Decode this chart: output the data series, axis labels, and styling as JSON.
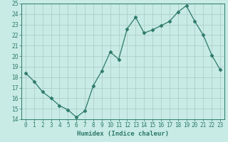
{
  "x": [
    0,
    1,
    2,
    3,
    4,
    5,
    6,
    7,
    8,
    9,
    10,
    11,
    12,
    13,
    14,
    15,
    16,
    17,
    18,
    19,
    20,
    21,
    22,
    23
  ],
  "y": [
    18.4,
    17.6,
    16.6,
    16.0,
    15.3,
    14.9,
    14.2,
    14.8,
    17.2,
    18.6,
    20.4,
    19.7,
    22.6,
    23.7,
    22.2,
    22.5,
    22.9,
    23.3,
    24.2,
    24.8,
    23.3,
    22.0,
    20.1,
    18.7
  ],
  "line_color": "#2d7a68",
  "marker": "D",
  "marker_size": 2.5,
  "bg_color": "#c8ebe5",
  "grid_color": "#b0cfc9",
  "xlabel": "Humidex (Indice chaleur)",
  "ylim": [
    14,
    25
  ],
  "xlim": [
    -0.5,
    23.5
  ],
  "yticks": [
    14,
    15,
    16,
    17,
    18,
    19,
    20,
    21,
    22,
    23,
    24,
    25
  ],
  "xticks": [
    0,
    1,
    2,
    3,
    4,
    5,
    6,
    7,
    8,
    9,
    10,
    11,
    12,
    13,
    14,
    15,
    16,
    17,
    18,
    19,
    20,
    21,
    22,
    23
  ],
  "xtick_labels": [
    "0",
    "1",
    "2",
    "3",
    "4",
    "5",
    "6",
    "7",
    "8",
    "9",
    "10",
    "11",
    "12",
    "13",
    "14",
    "15",
    "16",
    "17",
    "18",
    "19",
    "20",
    "21",
    "22",
    "23"
  ],
  "xlabel_fontsize": 6.5,
  "tick_fontsize": 5.5,
  "tick_color": "#2d7a68",
  "axis_color": "#2d7a68",
  "linewidth": 0.9
}
